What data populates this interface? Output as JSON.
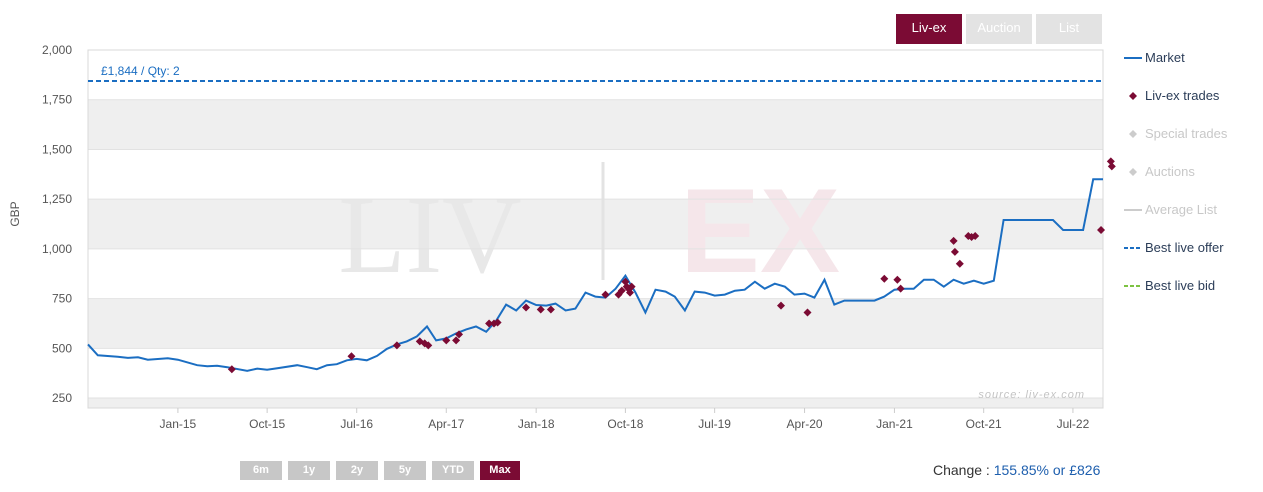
{
  "tabs": [
    {
      "label": "Liv-ex",
      "active": true
    },
    {
      "label": "Auction",
      "active": false
    },
    {
      "label": "List",
      "active": false
    }
  ],
  "legend": [
    {
      "label": "Market",
      "color": "#1b6ec2",
      "icon": "line",
      "active": true
    },
    {
      "label": "Liv-ex trades",
      "color": "#7b0b34",
      "icon": "diamond",
      "active": true
    },
    {
      "label": "Special trades",
      "color": "#cccccc",
      "icon": "diamond",
      "active": false
    },
    {
      "label": "Auctions",
      "color": "#cccccc",
      "icon": "diamond",
      "active": false
    },
    {
      "label": "Average List",
      "color": "#cccccc",
      "icon": "line",
      "active": false
    },
    {
      "label": "Best live offer",
      "color": "#1b6ec2",
      "icon": "dash",
      "active": true
    },
    {
      "label": "Best live bid",
      "color": "#7dc242",
      "icon": "dash",
      "active": true
    }
  ],
  "watermark": {
    "left": "LIV",
    "right": "EX"
  },
  "source_text": "source: liv-ex.com",
  "offer_label": "£1,844 / Qty: 2",
  "ranges": [
    {
      "label": "6m",
      "active": false
    },
    {
      "label": "1y",
      "active": false
    },
    {
      "label": "2y",
      "active": false
    },
    {
      "label": "5y",
      "active": false
    },
    {
      "label": "YTD",
      "active": false
    },
    {
      "label": "Max",
      "active": true
    }
  ],
  "change": {
    "label": "Change : ",
    "value": "155.85% or £826"
  },
  "chart_data": {
    "type": "line",
    "ylabel": "GBP",
    "ylim": [
      200,
      2000
    ],
    "yticks": [
      {
        "v": 250,
        "l": "250"
      },
      {
        "v": 500,
        "l": "500"
      },
      {
        "v": 750,
        "l": "750"
      },
      {
        "v": 1000,
        "l": "1,000"
      },
      {
        "v": 1250,
        "l": "1,250"
      },
      {
        "v": 1500,
        "l": "1,500"
      },
      {
        "v": 1750,
        "l": "1,750"
      },
      {
        "v": 2000,
        "l": "2,000"
      }
    ],
    "xlim": [
      "2014-04-01",
      "2022-10-01"
    ],
    "xticks": [
      {
        "d": "2015-01-01",
        "l": "Jan-15"
      },
      {
        "d": "2015-10-01",
        "l": "Oct-15"
      },
      {
        "d": "2016-07-01",
        "l": "Jul-16"
      },
      {
        "d": "2017-04-01",
        "l": "Apr-17"
      },
      {
        "d": "2018-01-01",
        "l": "Jan-18"
      },
      {
        "d": "2018-10-01",
        "l": "Oct-18"
      },
      {
        "d": "2019-07-01",
        "l": "Jul-19"
      },
      {
        "d": "2020-04-01",
        "l": "Apr-20"
      },
      {
        "d": "2021-01-01",
        "l": "Jan-21"
      },
      {
        "d": "2021-10-01",
        "l": "Oct-21"
      },
      {
        "d": "2022-07-01",
        "l": "Jul-22"
      }
    ],
    "best_live_offer": 1844,
    "series": [
      {
        "name": "Market",
        "color": "#1b6ec2",
        "points": [
          [
            "2014-04-01",
            520
          ],
          [
            "2014-05-01",
            465
          ],
          [
            "2014-07-01",
            458
          ],
          [
            "2014-08-01",
            452
          ],
          [
            "2014-09-01",
            455
          ],
          [
            "2014-10-01",
            443
          ],
          [
            "2014-12-01",
            450
          ],
          [
            "2015-01-01",
            443
          ],
          [
            "2015-03-01",
            415
          ],
          [
            "2015-04-01",
            410
          ],
          [
            "2015-05-01",
            412
          ],
          [
            "2015-06-01",
            405
          ],
          [
            "2015-08-01",
            387
          ],
          [
            "2015-09-01",
            398
          ],
          [
            "2015-10-01",
            392
          ],
          [
            "2015-11-01",
            400
          ],
          [
            "2016-01-01",
            415
          ],
          [
            "2016-02-01",
            405
          ],
          [
            "2016-03-01",
            395
          ],
          [
            "2016-04-01",
            415
          ],
          [
            "2016-05-01",
            420
          ],
          [
            "2016-06-01",
            440
          ],
          [
            "2016-07-01",
            447
          ],
          [
            "2016-08-01",
            440
          ],
          [
            "2016-09-01",
            462
          ],
          [
            "2016-10-01",
            497
          ],
          [
            "2016-11-01",
            520
          ],
          [
            "2016-12-01",
            535
          ],
          [
            "2017-01-01",
            560
          ],
          [
            "2017-02-01",
            610
          ],
          [
            "2017-03-01",
            540
          ],
          [
            "2017-04-01",
            550
          ],
          [
            "2017-05-01",
            575
          ],
          [
            "2017-06-01",
            595
          ],
          [
            "2017-07-01",
            610
          ],
          [
            "2017-08-01",
            583
          ],
          [
            "2017-09-01",
            640
          ],
          [
            "2017-10-01",
            720
          ],
          [
            "2017-11-01",
            690
          ],
          [
            "2017-12-01",
            740
          ],
          [
            "2018-01-01",
            718
          ],
          [
            "2018-02-01",
            715
          ],
          [
            "2018-03-01",
            725
          ],
          [
            "2018-04-01",
            690
          ],
          [
            "2018-05-01",
            700
          ],
          [
            "2018-06-01",
            780
          ],
          [
            "2018-07-01",
            760
          ],
          [
            "2018-08-01",
            755
          ],
          [
            "2018-09-01",
            800
          ],
          [
            "2018-10-01",
            865
          ],
          [
            "2018-11-01",
            780
          ],
          [
            "2018-12-01",
            680
          ],
          [
            "2019-01-01",
            795
          ],
          [
            "2019-02-01",
            785
          ],
          [
            "2019-03-01",
            760
          ],
          [
            "2019-04-01",
            690
          ],
          [
            "2019-05-01",
            785
          ],
          [
            "2019-06-01",
            780
          ],
          [
            "2019-07-01",
            765
          ],
          [
            "2019-08-01",
            770
          ],
          [
            "2019-09-01",
            790
          ],
          [
            "2019-10-01",
            795
          ],
          [
            "2019-11-01",
            835
          ],
          [
            "2019-12-01",
            800
          ],
          [
            "2020-01-01",
            825
          ],
          [
            "2020-02-01",
            810
          ],
          [
            "2020-03-01",
            770
          ],
          [
            "2020-04-01",
            775
          ],
          [
            "2020-05-01",
            755
          ],
          [
            "2020-06-01",
            845
          ],
          [
            "2020-07-01",
            720
          ],
          [
            "2020-08-01",
            740
          ],
          [
            "2020-09-01",
            740
          ],
          [
            "2020-10-01",
            740
          ],
          [
            "2020-11-01",
            740
          ],
          [
            "2020-12-01",
            760
          ],
          [
            "2021-01-01",
            795
          ],
          [
            "2021-02-01",
            800
          ],
          [
            "2021-03-01",
            800
          ],
          [
            "2021-04-01",
            845
          ],
          [
            "2021-05-01",
            845
          ],
          [
            "2021-06-01",
            810
          ],
          [
            "2021-07-01",
            845
          ],
          [
            "2021-08-01",
            825
          ],
          [
            "2021-09-01",
            840
          ],
          [
            "2021-10-01",
            825
          ],
          [
            "2021-11-01",
            840
          ],
          [
            "2021-12-01",
            1145
          ],
          [
            "2022-01-01",
            1145
          ],
          [
            "2022-02-01",
            1145
          ],
          [
            "2022-03-01",
            1145
          ],
          [
            "2022-04-01",
            1145
          ],
          [
            "2022-05-01",
            1145
          ],
          [
            "2022-06-01",
            1095
          ],
          [
            "2022-07-01",
            1095
          ],
          [
            "2022-08-01",
            1095
          ],
          [
            "2022-09-01",
            1350
          ],
          [
            "2022-10-01",
            1350
          ]
        ]
      },
      {
        "name": "Liv-ex trades",
        "color": "#7b0b34",
        "points": [
          [
            "2015-06-15",
            395
          ],
          [
            "2016-06-15",
            460
          ],
          [
            "2016-11-01",
            515
          ],
          [
            "2017-01-10",
            535
          ],
          [
            "2017-01-25",
            525
          ],
          [
            "2017-02-05",
            515
          ],
          [
            "2017-04-01",
            540
          ],
          [
            "2017-05-01",
            540
          ],
          [
            "2017-05-10",
            570
          ],
          [
            "2017-08-10",
            625
          ],
          [
            "2017-08-25",
            625
          ],
          [
            "2017-09-05",
            630
          ],
          [
            "2017-12-01",
            705
          ],
          [
            "2018-01-15",
            695
          ],
          [
            "2018-02-15",
            695
          ],
          [
            "2018-08-01",
            770
          ],
          [
            "2018-09-10",
            770
          ],
          [
            "2018-09-20",
            790
          ],
          [
            "2018-10-01",
            835
          ],
          [
            "2018-10-05",
            810
          ],
          [
            "2018-10-10",
            800
          ],
          [
            "2018-10-15",
            780
          ],
          [
            "2018-10-20",
            810
          ],
          [
            "2020-01-20",
            715
          ],
          [
            "2020-04-10",
            680
          ],
          [
            "2020-12-01",
            850
          ],
          [
            "2021-01-10",
            845
          ],
          [
            "2021-01-20",
            800
          ],
          [
            "2021-07-01",
            1040
          ],
          [
            "2021-07-05",
            985
          ],
          [
            "2021-07-20",
            925
          ],
          [
            "2021-08-15",
            1065
          ],
          [
            "2021-08-25",
            1060
          ],
          [
            "2021-09-05",
            1065
          ],
          [
            "2022-09-25",
            1095
          ],
          [
            "2022-10-25",
            1440
          ],
          [
            "2022-10-28",
            1415
          ]
        ]
      }
    ]
  }
}
